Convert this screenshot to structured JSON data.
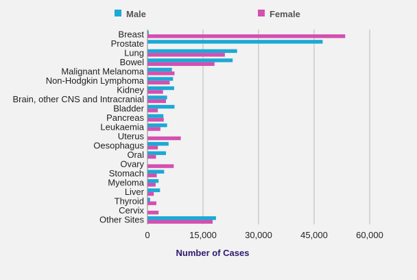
{
  "chart_data": {
    "type": "bar",
    "orientation": "horizontal",
    "title": "",
    "xlabel": "Number of Cases",
    "ylabel": "",
    "xlim": [
      0,
      60000
    ],
    "xticks": [
      0,
      15000,
      30000,
      45000,
      60000
    ],
    "xtick_labels": [
      "0",
      "15,000",
      "30,000",
      "45,000",
      "60,000"
    ],
    "grid": "vertical",
    "legend": "top",
    "categories": [
      "Breast",
      "Prostate",
      "Lung",
      "Bowel",
      "Malignant Melanoma",
      "Non-Hodgkin Lymphoma",
      "Kidney",
      "Brain, other CNS and Intracranial",
      "Bladder",
      "Pancreas",
      "Leukaemia",
      "Uterus",
      "Oesophagus",
      "Oral",
      "Ovary",
      "Stomach",
      "Myeloma",
      "Liver",
      "Thyroid",
      "Cervix",
      "Other Sites"
    ],
    "series": [
      {
        "name": "Male",
        "color": "#1ba9d6",
        "values": [
          350,
          47300,
          24200,
          23000,
          6600,
          6900,
          7200,
          5300,
          7300,
          4300,
          5300,
          0,
          5700,
          5000,
          0,
          4500,
          3000,
          3400,
          700,
          0,
          18500
        ]
      },
      {
        "name": "Female",
        "color": "#d44fb0",
        "values": [
          53400,
          0,
          20900,
          18100,
          7300,
          6000,
          4200,
          5000,
          2800,
          4400,
          3500,
          9000,
          2800,
          2300,
          7100,
          2500,
          2200,
          1700,
          2400,
          3000,
          17600
        ]
      }
    ]
  }
}
